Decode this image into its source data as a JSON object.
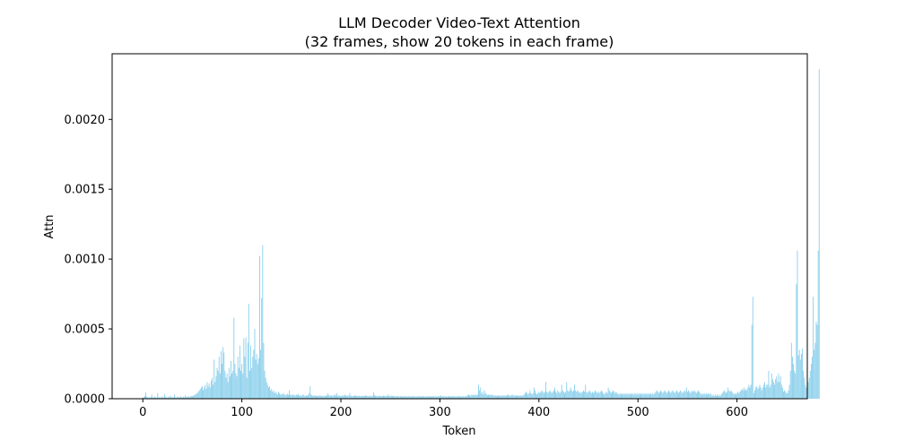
{
  "chart_data": {
    "type": "bar",
    "title": "LLM Decoder Video-Text Attention",
    "subtitle": "(32 frames, show 20 tokens in each frame)",
    "xlabel": "Token",
    "ylabel": "Attn",
    "xlim": [
      -31,
      671
    ],
    "ylim": [
      0,
      0.00247
    ],
    "x_ticks": [
      0,
      100,
      200,
      300,
      400,
      500,
      600
    ],
    "x_tick_labels": [
      "0",
      "100",
      "200",
      "300",
      "400",
      "500",
      "600"
    ],
    "y_ticks": [
      0,
      0.0005,
      0.001,
      0.0015,
      0.002
    ],
    "y_tick_labels": [
      "0.0000",
      "0.0005",
      "0.0010",
      "0.0015",
      "0.0020"
    ],
    "grid": false,
    "bar_color": "#87ceeb",
    "series": [
      {
        "values": [
          8e-06,
          1.2e-05,
          2e-05,
          4.5e-05,
          1.5e-05,
          1e-05,
          8e-06,
          6e-06,
          1.2e-05,
          3e-05,
          9e-06,
          7e-06,
          1.5e-05,
          1e-05,
          8e-06,
          4e-05,
          1.2e-05,
          9e-06,
          6e-06,
          1.8e-05,
          1e-05,
          8e-06,
          3.5e-05,
          1.2e-05,
          9e-06,
          7e-06,
          1.5e-05,
          1e-05,
          2.2e-05,
          8e-06,
          1.2e-05,
          9e-06,
          3e-05,
          1e-05,
          8e-06,
          1.5e-05,
          1.2e-05,
          9e-06,
          2e-05,
          1.1e-05,
          8e-06,
          1.4e-05,
          1e-05,
          2.5e-05,
          1.2e-05,
          1.5e-05,
          1.8e-05,
          1.2e-05,
          1.6e-05,
          2e-05,
          1.8e-05,
          2.2e-05,
          2.5e-05,
          3e-05,
          3.5e-05,
          4e-05,
          5e-05,
          6e-05,
          7e-05,
          8e-05,
          9e-05,
          6e-05,
          8e-05,
          0.0001,
          7e-05,
          0.00012,
          9e-05,
          0.00011,
          8e-05,
          0.00013,
          0.00015,
          0.0001,
          0.00028,
          0.00012,
          0.00016,
          0.00022,
          0.0002,
          0.0003,
          0.00018,
          0.00034,
          0.00025,
          0.00037,
          0.00033,
          0.0002,
          0.00015,
          0.00018,
          0.00012,
          0.00022,
          0.00016,
          0.00027,
          0.00018,
          0.0002,
          0.00058,
          0.00025,
          0.00018,
          0.00016,
          0.0003,
          0.00022,
          0.00038,
          0.0002,
          0.00025,
          0.00018,
          0.00043,
          0.0003,
          0.00044,
          0.00015,
          0.0004,
          0.00068,
          0.0002,
          0.00038,
          0.00022,
          0.0003,
          0.00035,
          0.0005,
          0.00028,
          0.00032,
          0.00025,
          0.00029,
          0.00102,
          0.00035,
          0.00072,
          0.0011,
          0.0004,
          0.0002,
          0.00015,
          0.00012,
          0.0001,
          8e-05,
          9e-05,
          6e-05,
          7e-05,
          5e-05,
          6e-05,
          4e-05,
          5e-05,
          4e-05,
          3e-05,
          5e-05,
          4e-05,
          3e-05,
          3.5e-05,
          3e-05,
          4e-05,
          3e-05,
          2.5e-05,
          3e-05,
          3.5e-05,
          2.8e-05,
          6e-05,
          3e-05,
          2.5e-05,
          2.8e-05,
          3e-05,
          2.5e-05,
          2.2e-05,
          3e-05,
          2.5e-05,
          3.5e-05,
          2.2e-05,
          2.5e-05,
          2e-05,
          2.5e-05,
          3e-05,
          2.2e-05,
          2e-05,
          2.5e-05,
          2e-05,
          2.5e-05,
          4e-05,
          9e-05,
          3e-05,
          2.5e-05,
          2e-05,
          2.2e-05,
          2.5e-05,
          2e-05,
          1.8e-05,
          2.2e-05,
          2e-05,
          2.5e-05,
          2e-05,
          1.8e-05,
          2.2e-05,
          2e-05,
          1.8e-05,
          2.5e-05,
          2.2e-05,
          4e-05,
          2.5e-05,
          2e-05,
          2.5e-05,
          2.2e-05,
          2e-05,
          2.5e-05,
          3e-05,
          2.2e-05,
          4e-05,
          2e-05,
          2.5e-05,
          2e-05,
          1.8e-05,
          2.2e-05,
          2.5e-05,
          2e-05,
          3e-05,
          2.2e-05,
          2e-05,
          2.5e-05,
          2e-05,
          4e-05,
          2.2e-05,
          2e-05,
          1.8e-05,
          2.2e-05,
          2e-05,
          2.5e-05,
          2e-05,
          1.8e-05,
          2.2e-05,
          2e-05,
          1.8e-05,
          2e-05,
          2.2e-05,
          1.8e-05,
          2e-05,
          2.5e-05,
          2.2e-05,
          2e-05,
          1.8e-05,
          2e-05,
          2.2e-05,
          1.8e-05,
          2e-05,
          4.5e-05,
          2.5e-05,
          2.2e-05,
          2e-05,
          1.8e-05,
          2e-05,
          2.2e-05,
          1.8e-05,
          2e-05,
          1.8e-05,
          2.2e-05,
          2e-05,
          1.8e-05,
          2e-05,
          2.2e-05,
          3e-05,
          2e-05,
          1.8e-05,
          2.2e-05,
          2e-05,
          1.8e-05,
          2e-05,
          1.5e-05,
          1.8e-05,
          2e-05,
          1.8e-05,
          1.5e-05,
          1.8e-05,
          2e-05,
          1.5e-05,
          1.8e-05,
          1.5e-05,
          2e-05,
          1.8e-05,
          1.5e-05,
          1.8e-05,
          2e-05,
          1.5e-05,
          1.8e-05,
          1.5e-05,
          2e-05,
          1.8e-05,
          1.5e-05,
          1.8e-05,
          1.5e-05,
          1.8e-05,
          2e-05,
          1.5e-05,
          1.8e-05,
          1.5e-05,
          2e-05,
          1.8e-05,
          1.5e-05,
          1.8e-05,
          1.5e-05,
          1.8e-05,
          2e-05,
          1.5e-05,
          1.8e-05,
          1.5e-05,
          2e-05,
          1.8e-05,
          1.5e-05,
          1.8e-05,
          1.5e-05,
          1.8e-05,
          2e-05,
          1.5e-05,
          2.5e-05,
          1.5e-05,
          2e-05,
          1.8e-05,
          1.5e-05,
          1.8e-05,
          1.5e-05,
          1.8e-05,
          2e-05,
          1.5e-05,
          1.8e-05,
          1.5e-05,
          2e-05,
          1.8e-05,
          1.5e-05,
          1.8e-05,
          1.5e-05,
          1.8e-05,
          2e-05,
          1.5e-05,
          1.8e-05,
          1.5e-05,
          2e-05,
          1.8e-05,
          1.5e-05,
          1.8e-05,
          2e-05,
          2.5e-05,
          3e-05,
          2.5e-05,
          2e-05,
          3e-05,
          2.5e-05,
          3e-05,
          2.5e-05,
          3e-05,
          2.5e-05,
          3e-05,
          0.0001,
          6e-05,
          8e-05,
          4e-05,
          5e-05,
          3e-05,
          6e-05,
          4e-05,
          3e-05,
          2.5e-05,
          3e-05,
          2.5e-05,
          3e-05,
          2.5e-05,
          3e-05,
          2.5e-05,
          2e-05,
          2.5e-05,
          2e-05,
          2.5e-05,
          2e-05,
          2.5e-05,
          2e-05,
          2.5e-05,
          2e-05,
          2.5e-05,
          2e-05,
          2.5e-05,
          2e-05,
          2.5e-05,
          3e-05,
          2.5e-05,
          2e-05,
          2.5e-05,
          3e-05,
          2.5e-05,
          2e-05,
          2.5e-05,
          2e-05,
          2.5e-05,
          2e-05,
          2.5e-05,
          2e-05,
          2.5e-05,
          2e-05,
          2.5e-05,
          3e-05,
          4e-05,
          5e-05,
          4e-05,
          3e-05,
          4e-05,
          6e-05,
          4e-05,
          3e-05,
          4e-05,
          8e-05,
          6e-05,
          4e-05,
          3e-05,
          4e-05,
          5e-05,
          4e-05,
          5e-05,
          6e-05,
          5e-05,
          4e-05,
          5e-05,
          0.00012,
          5e-05,
          4e-05,
          5e-05,
          6e-05,
          5e-05,
          4e-05,
          5e-05,
          6e-05,
          8e-05,
          5e-05,
          4e-05,
          6e-05,
          5e-05,
          4e-05,
          5e-05,
          0.0001,
          6e-05,
          5e-05,
          4e-05,
          5e-05,
          0.00012,
          6e-05,
          5e-05,
          6e-05,
          8e-05,
          6e-05,
          5e-05,
          6e-05,
          0.0001,
          6e-05,
          5e-05,
          6e-05,
          5e-05,
          4e-05,
          5e-05,
          4e-05,
          5e-05,
          6e-05,
          5e-05,
          0.0001,
          5e-05,
          4e-05,
          5e-05,
          6e-05,
          5e-05,
          4e-05,
          5e-05,
          4e-05,
          5e-05,
          6e-05,
          5e-05,
          4e-05,
          5e-05,
          4e-05,
          5e-05,
          6e-05,
          5e-05,
          4e-05,
          3e-05,
          4e-05,
          5e-05,
          4e-05,
          8e-05,
          6e-05,
          5e-05,
          4e-05,
          5e-05,
          6e-05,
          5e-05,
          4e-05,
          5e-05,
          4e-05,
          3e-05,
          4e-05,
          3e-05,
          4e-05,
          3e-05,
          4e-05,
          3e-05,
          4e-05,
          3e-05,
          4e-05,
          3e-05,
          4e-05,
          3e-05,
          4e-05,
          3e-05,
          4e-05,
          3e-05,
          4e-05,
          3e-05,
          4e-05,
          3e-05,
          4e-05,
          3e-05,
          4e-05,
          3e-05,
          4e-05,
          3e-05,
          4e-05,
          3e-05,
          4e-05,
          3e-05,
          4e-05,
          3e-05,
          4e-05,
          3e-05,
          4e-05,
          3e-05,
          4e-05,
          5e-05,
          6e-05,
          5e-05,
          4e-05,
          5e-05,
          6e-05,
          5e-05,
          4e-05,
          5e-05,
          6e-05,
          5e-05,
          4e-05,
          5e-05,
          6e-05,
          5e-05,
          4e-05,
          5e-05,
          6e-05,
          5e-05,
          4e-05,
          5e-05,
          6e-05,
          5e-05,
          4e-05,
          5e-05,
          6e-05,
          5e-05,
          4e-05,
          5e-05,
          6e-05,
          5e-05,
          8e-05,
          5e-05,
          6e-05,
          5e-05,
          4e-05,
          5e-05,
          6e-05,
          5e-05,
          6e-05,
          5e-05,
          4e-05,
          5e-05,
          6e-05,
          5e-05,
          4e-05,
          3e-05,
          4e-05,
          3e-05,
          4e-05,
          3e-05,
          4e-05,
          3e-05,
          4e-05,
          3e-05,
          4e-05,
          3e-05,
          2e-05,
          3e-05,
          2e-05,
          3e-05,
          2e-05,
          3e-05,
          2e-05,
          3e-05,
          2e-05,
          3e-05,
          4e-05,
          5e-05,
          6e-05,
          5e-05,
          4e-05,
          5e-05,
          8e-05,
          6e-05,
          5e-05,
          6e-05,
          5e-05,
          4e-05,
          3e-05,
          4e-05,
          3e-05,
          4e-05,
          5e-05,
          4e-05,
          5e-05,
          6e-05,
          7e-05,
          6e-05,
          8e-05,
          6e-05,
          7e-05,
          6e-05,
          8e-05,
          0.0001,
          8e-05,
          0.0001,
          0.00053,
          0.00073,
          4e-05,
          6e-05,
          8e-05,
          9e-05,
          7e-05,
          8e-05,
          0.0001,
          8e-05,
          6e-05,
          8e-05,
          0.0001,
          0.00012,
          8e-05,
          0.0001,
          0.0001,
          0.0002,
          8e-05,
          0.0001,
          0.00018,
          0.00014,
          0.00012,
          0.0001,
          0.00014,
          0.00016,
          0.00012,
          0.00018,
          0.00012,
          0.00016,
          0.0001,
          8e-05,
          5e-05,
          6e-05,
          5e-05,
          4e-05,
          4e-05,
          6e-05,
          0.0001,
          0.0002,
          0.0004,
          0.0003,
          0.00025,
          0.0002,
          0.00018,
          0.00082,
          0.00106,
          0.00031,
          0.00035,
          0.00028,
          0.00032,
          0.00036,
          0.0002,
          0.00015,
          0.0001,
          8e-05,
          0.0001,
          0.00012,
          0.00015,
          0.0002,
          0.00025,
          0.0003,
          0.00073,
          0.00035,
          0.0004,
          0.00055,
          0.00053,
          0.00106,
          0.00236
        ]
      }
    ]
  }
}
